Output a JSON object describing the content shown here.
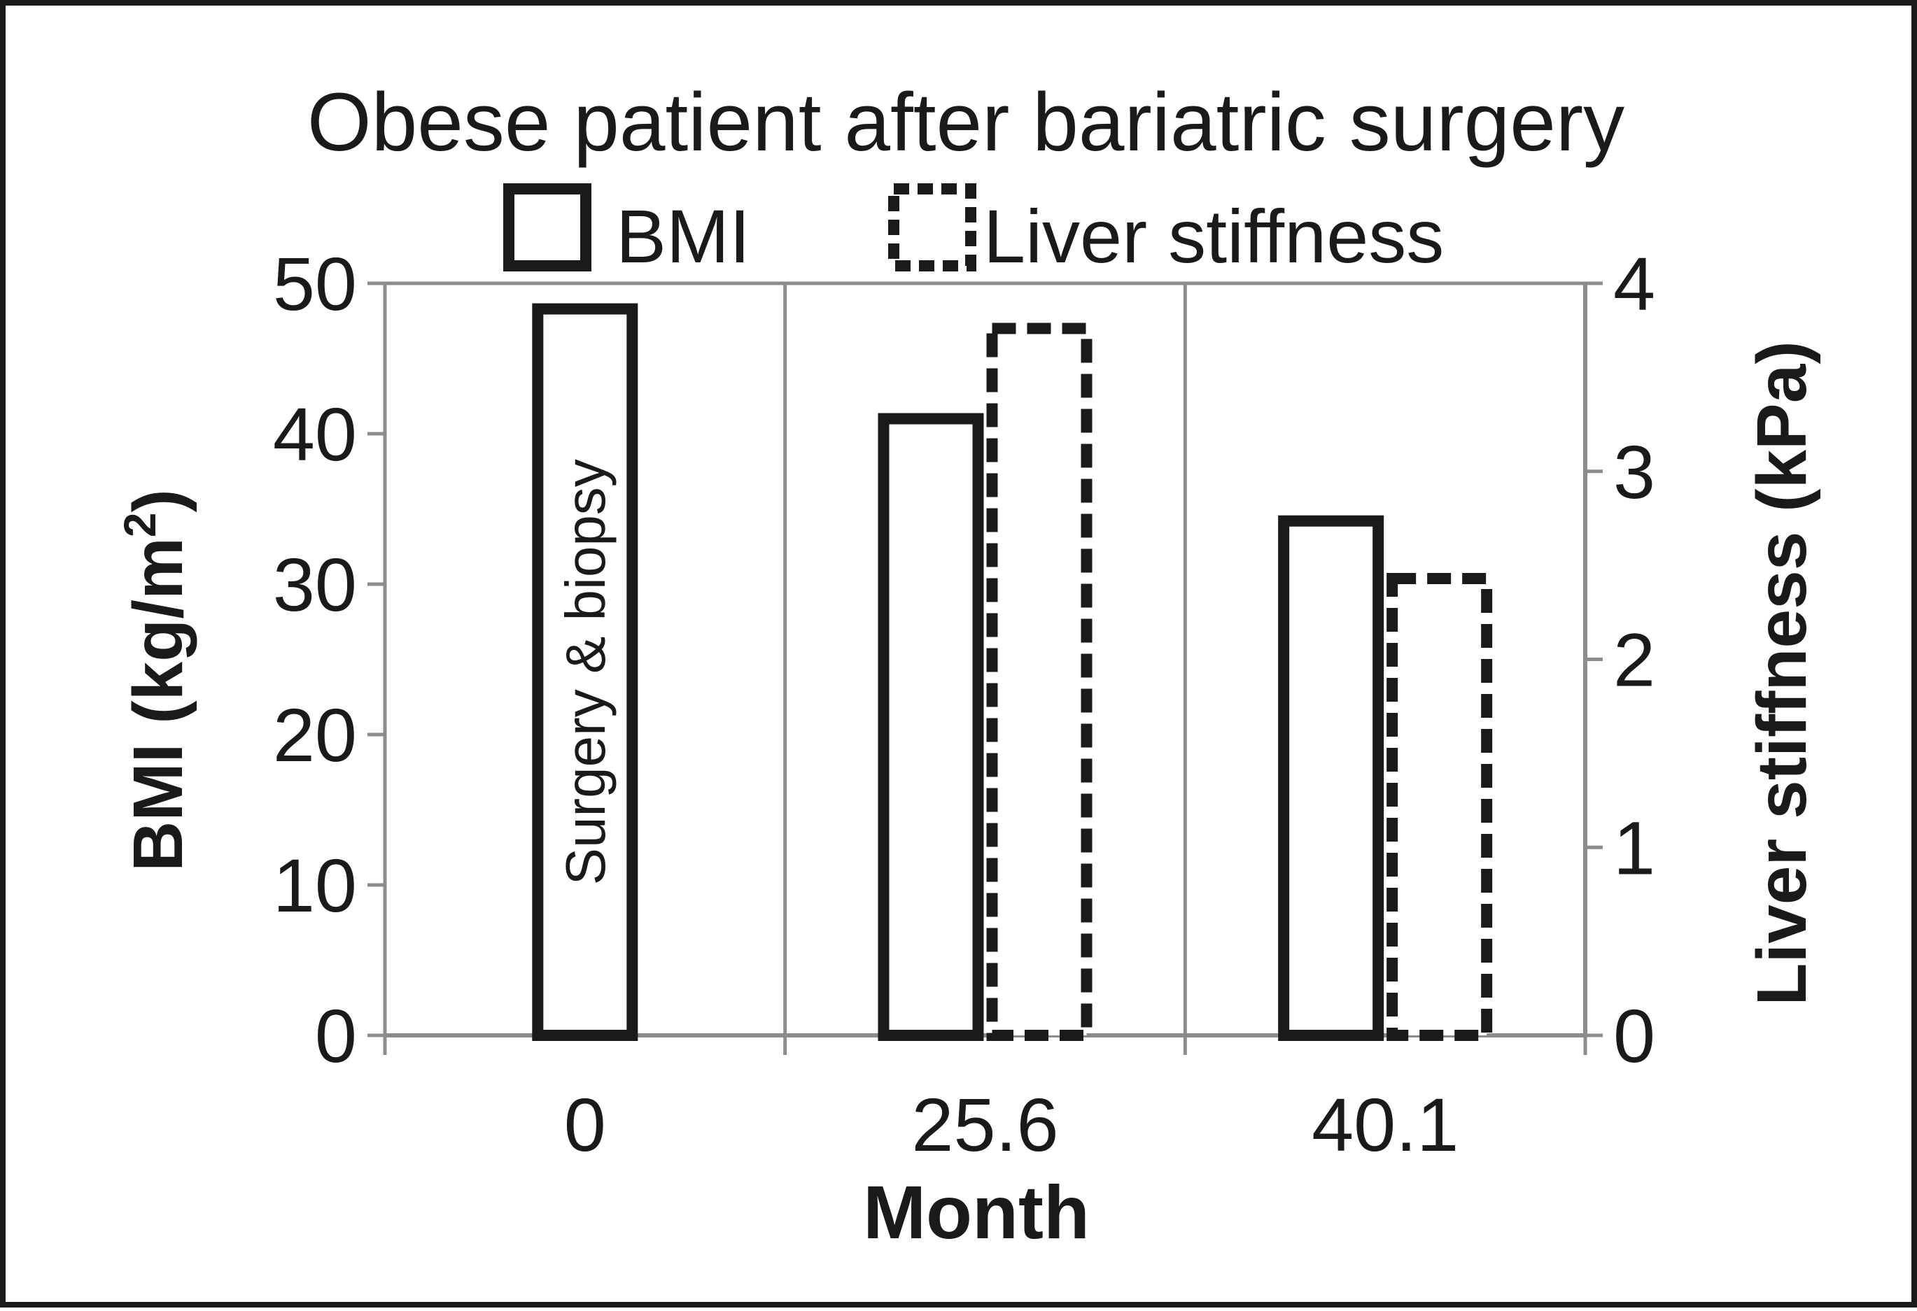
{
  "chart_data": {
    "type": "bar",
    "title": "Obese patient after bariatric surgery",
    "xlabel": "Month",
    "ylabel_left": "BMI (kg/m",
    "ylabel_left_superscript": "2",
    "ylabel_left_close": ")",
    "ylabel_right": "Liver stiffness (kPa)",
    "categories": [
      "0",
      "25.6",
      "40.1"
    ],
    "y_left": {
      "ticks": [
        "0",
        "10",
        "20",
        "30",
        "40",
        "50"
      ],
      "lim": [
        0,
        50
      ]
    },
    "y_right": {
      "ticks": [
        "0",
        "1",
        "2",
        "3",
        "4"
      ],
      "lim": [
        0,
        4
      ]
    },
    "series": [
      {
        "name": "BMI",
        "axis": "left",
        "style": "solid",
        "values": [
          48.3,
          41.0,
          34.2
        ]
      },
      {
        "name": "Liver stiffness",
        "axis": "right",
        "style": "dashed",
        "values": [
          null,
          3.76,
          2.43
        ]
      }
    ],
    "annotation": "Surgery & biopsy",
    "legend_position": "top",
    "grid": "vertical",
    "colors": {
      "bar_stroke": "#1a1a1a",
      "bar_fill": "#ffffff",
      "axis": "#8c8c8c",
      "frame": "#1a1a1a"
    }
  }
}
